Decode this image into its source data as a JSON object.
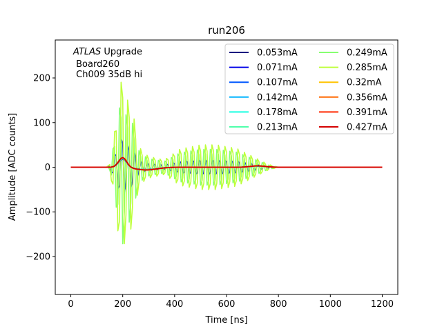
{
  "chart_data": {
    "type": "line",
    "title": "run206",
    "xlabel": "Time [ns]",
    "ylabel": "Amplitude [ADC counts]",
    "xlim": [
      -60,
      1260
    ],
    "ylim": [
      -285,
      285
    ],
    "xticks": [
      0,
      200,
      400,
      600,
      800,
      1000,
      1200
    ],
    "xtick_labels": [
      "0",
      "200",
      "400",
      "600",
      "800",
      "1000",
      "1200"
    ],
    "yticks": [
      -200,
      -100,
      0,
      100,
      200
    ],
    "ytick_labels": [
      "−200",
      "−100",
      "0",
      "100",
      "200"
    ],
    "grid": false,
    "legend_position": "top-right",
    "annotation": {
      "atlas": "ATLAS",
      "upgrade": " Upgrade",
      "line2": " Board260",
      "line3": " Ch009 35dB hi"
    },
    "sample_period_ns": 6.25,
    "x_range_ns": [
      0,
      1200
    ],
    "series": [
      {
        "name": "0.053mA",
        "color": "#00007f",
        "kind": "pulse"
      },
      {
        "name": "0.071mA",
        "color": "#0000e8",
        "kind": "oscillation",
        "scale": 0.34,
        "phase": 0.0
      },
      {
        "name": "0.107mA",
        "color": "#0058ff",
        "kind": "pulse"
      },
      {
        "name": "0.142mA",
        "color": "#00b4ff",
        "kind": "pulse"
      },
      {
        "name": "0.178mA",
        "color": "#16ffe1",
        "kind": "pulse"
      },
      {
        "name": "0.213mA",
        "color": "#4dffaa",
        "kind": "pulse"
      },
      {
        "name": "0.249mA",
        "color": "#86ff71",
        "kind": "oscillation",
        "scale": 0.8,
        "phase": 1.57
      },
      {
        "name": "0.285mA",
        "color": "#beff3a",
        "kind": "oscillation",
        "scale": 1.0,
        "phase": 0.0
      },
      {
        "name": "0.32mA",
        "color": "#ffc400",
        "kind": "pulse"
      },
      {
        "name": "0.356mA",
        "color": "#ff6800",
        "kind": "pulse"
      },
      {
        "name": "0.391mA",
        "color": "#ff2900",
        "kind": "pulse"
      },
      {
        "name": "0.427mA",
        "color": "#d40000",
        "kind": "pulse"
      }
    ],
    "oscillation_profile": {
      "segments": [
        {
          "t": [
            140,
            150,
            165,
            180,
            200,
            210,
            225,
            245,
            260,
            280,
            300,
            330,
            360
          ],
          "amp": [
            0,
            10,
            75,
            170,
            265,
            180,
            190,
            130,
            60,
            40,
            30,
            25,
            20
          ]
        },
        {
          "t": [
            360,
            420,
            500,
            560,
            640,
            700,
            760,
            800
          ],
          "amp": [
            20,
            50,
            62,
            62,
            52,
            30,
            8,
            0
          ]
        }
      ],
      "period_ns": 25
    },
    "pulse_profile": {
      "peak_ns": 200,
      "peak_value": 22,
      "undershoot_ns": 290,
      "undershoot_value": -6,
      "tail_bump_ns": 720,
      "tail_bump_value": 3
    }
  }
}
